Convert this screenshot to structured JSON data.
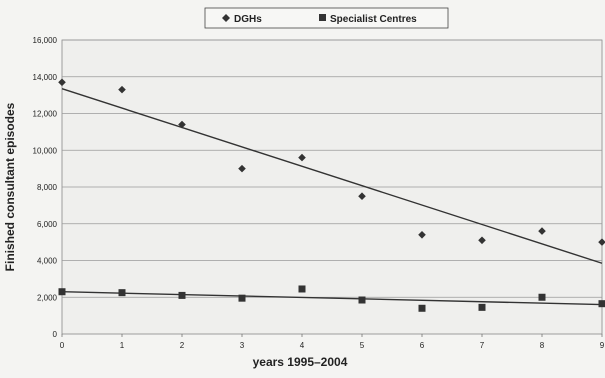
{
  "chart_data": {
    "type": "scatter",
    "xlabel": "years 1995–2004",
    "ylabel": "Finished consultant episodes",
    "xlim": [
      0,
      9
    ],
    "ylim": [
      0,
      16000
    ],
    "x_ticks": [
      "0",
      "1",
      "2",
      "3",
      "4",
      "5",
      "6",
      "7",
      "8",
      "9"
    ],
    "y_ticks": [
      "0",
      "2,000",
      "4,000",
      "6,000",
      "8,000",
      "10,000",
      "12,000",
      "14,000",
      "16,000"
    ],
    "grid": true,
    "legend_position": "top",
    "series": [
      {
        "name": "DGHs",
        "marker": "diamond",
        "color": "#333333",
        "x": [
          0,
          1,
          2,
          3,
          4,
          5,
          6,
          7,
          8,
          9
        ],
        "y": [
          13700,
          13300,
          11400,
          9000,
          9600,
          7500,
          5400,
          5100,
          5600,
          5000
        ],
        "trendline": [
          13350,
          3850
        ]
      },
      {
        "name": "Specialist Centres",
        "marker": "square",
        "color": "#333333",
        "x": [
          0,
          1,
          2,
          3,
          4,
          5,
          6,
          7,
          8,
          9
        ],
        "y": [
          2300,
          2250,
          2100,
          1950,
          2450,
          1850,
          1400,
          1450,
          2000,
          1650
        ],
        "trendline": [
          2300,
          1600
        ]
      }
    ]
  }
}
